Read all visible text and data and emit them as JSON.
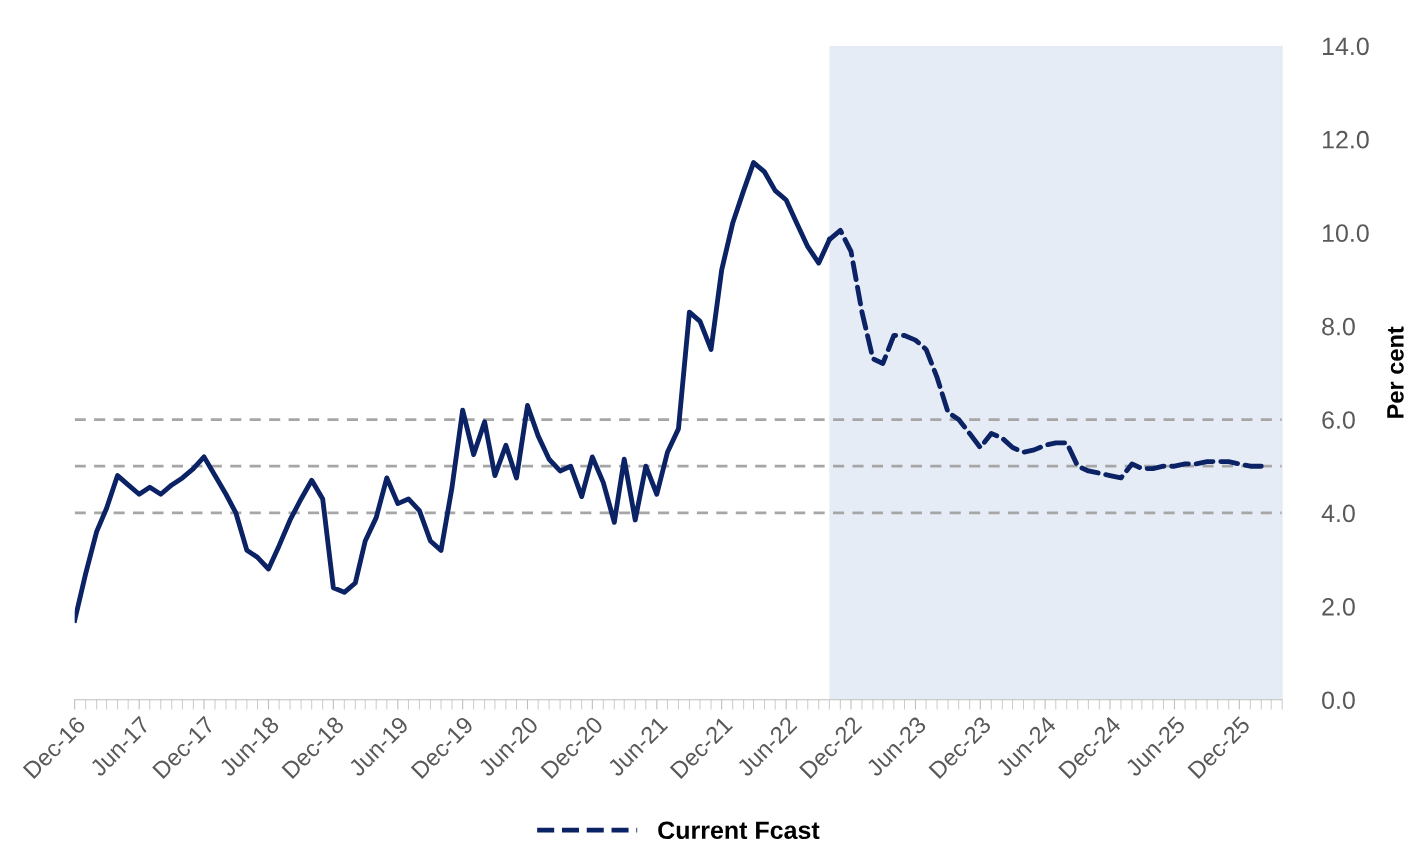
{
  "chart_data": {
    "type": "line",
    "ylabel": "Per cent",
    "x": [
      "2016-12",
      "2017-01",
      "2017-02",
      "2017-03",
      "2017-04",
      "2017-05",
      "2017-06",
      "2017-07",
      "2017-08",
      "2017-09",
      "2017-10",
      "2017-11",
      "2017-12",
      "2018-01",
      "2018-02",
      "2018-03",
      "2018-04",
      "2018-05",
      "2018-06",
      "2018-07",
      "2018-08",
      "2018-09",
      "2018-10",
      "2018-11",
      "2018-12",
      "2019-01",
      "2019-02",
      "2019-03",
      "2019-04",
      "2019-05",
      "2019-06",
      "2019-07",
      "2019-08",
      "2019-09",
      "2019-10",
      "2019-11",
      "2019-12",
      "2020-01",
      "2020-02",
      "2020-03",
      "2020-04",
      "2020-05",
      "2020-06",
      "2020-07",
      "2020-08",
      "2020-09",
      "2020-10",
      "2020-11",
      "2020-12",
      "2021-01",
      "2021-02",
      "2021-03",
      "2021-04",
      "2021-05",
      "2021-06",
      "2021-07",
      "2021-08",
      "2021-09",
      "2021-10",
      "2021-11",
      "2021-12",
      "2022-01",
      "2022-02",
      "2022-03",
      "2022-04",
      "2022-05",
      "2022-06",
      "2022-07",
      "2022-08",
      "2022-09",
      "2022-10",
      "2022-11",
      "2022-12",
      "2023-01",
      "2023-02",
      "2023-03",
      "2023-04",
      "2023-05",
      "2023-06",
      "2023-07",
      "2023-08",
      "2023-09",
      "2023-10",
      "2023-11",
      "2023-12",
      "2024-01",
      "2024-02",
      "2024-03",
      "2024-04",
      "2024-05",
      "2024-06",
      "2024-07",
      "2024-08",
      "2024-09",
      "2024-10",
      "2024-11",
      "2024-12",
      "2025-01",
      "2025-02",
      "2025-03",
      "2025-04",
      "2025-05",
      "2025-06",
      "2025-07",
      "2025-08",
      "2025-09",
      "2025-10",
      "2025-11",
      "2025-12",
      "2026-01",
      "2026-02"
    ],
    "series": [
      {
        "color": "#0b2265",
        "line_style": "solid",
        "values": [
          1.7,
          2.7,
          3.6,
          4.1,
          4.8,
          4.6,
          4.4,
          4.55,
          4.4,
          4.6,
          4.75,
          4.95,
          5.2,
          4.8,
          4.4,
          4.0,
          3.2,
          3.05,
          2.8,
          3.3,
          3.85,
          4.3,
          4.7,
          4.3,
          2.4,
          2.3,
          2.5,
          3.4,
          3.9,
          4.75,
          4.2,
          4.3,
          4.05,
          3.4,
          3.2,
          4.55,
          6.2,
          5.25,
          5.95,
          4.8,
          5.45,
          4.75,
          6.3,
          5.65,
          5.15,
          4.9,
          5.0,
          4.35,
          5.2,
          4.65,
          3.8,
          5.15,
          3.85,
          5.0,
          4.4,
          5.3,
          5.8,
          8.3,
          8.1,
          7.5,
          9.2,
          10.2,
          10.9,
          11.5,
          11.3,
          10.9,
          10.7,
          10.2,
          9.7,
          9.35,
          9.85,
          null,
          null,
          null,
          null,
          null,
          null,
          null,
          null,
          null,
          null,
          null,
          null,
          null,
          null,
          null,
          null,
          null,
          null,
          null,
          null,
          null,
          null,
          null,
          null,
          null,
          null,
          null,
          null,
          null,
          null,
          null,
          null,
          null,
          null,
          null,
          null,
          null,
          null,
          null,
          null
        ]
      },
      {
        "name": "Current Fcast",
        "color": "#0b2265",
        "line_style": "dashed",
        "values": [
          null,
          null,
          null,
          null,
          null,
          null,
          null,
          null,
          null,
          null,
          null,
          null,
          null,
          null,
          null,
          null,
          null,
          null,
          null,
          null,
          null,
          null,
          null,
          null,
          null,
          null,
          null,
          null,
          null,
          null,
          null,
          null,
          null,
          null,
          null,
          null,
          null,
          null,
          null,
          null,
          null,
          null,
          null,
          null,
          null,
          null,
          null,
          null,
          null,
          null,
          null,
          null,
          null,
          null,
          null,
          null,
          null,
          null,
          null,
          null,
          null,
          null,
          null,
          null,
          null,
          null,
          null,
          null,
          null,
          null,
          9.85,
          10.05,
          9.6,
          8.3,
          7.3,
          7.2,
          7.8,
          7.8,
          7.7,
          7.5,
          6.9,
          6.15,
          6.0,
          5.7,
          5.4,
          5.7,
          5.6,
          5.4,
          5.3,
          5.35,
          5.45,
          5.5,
          5.5,
          5.0,
          4.9,
          4.85,
          4.8,
          4.75,
          5.05,
          4.95,
          4.95,
          5.0,
          5.0,
          5.05,
          5.05,
          5.1,
          5.1,
          5.1,
          5.05,
          5.0,
          5.0
        ]
      }
    ],
    "xlim": [
      "2016-12",
      "2026-04"
    ],
    "xticks": [
      {
        "value": "2016-12",
        "label": "Dec-16"
      },
      {
        "value": "2017-06",
        "label": "Jun-17"
      },
      {
        "value": "2017-12",
        "label": "Dec-17"
      },
      {
        "value": "2018-06",
        "label": "Jun-18"
      },
      {
        "value": "2018-12",
        "label": "Dec-18"
      },
      {
        "value": "2019-06",
        "label": "Jun-19"
      },
      {
        "value": "2019-12",
        "label": "Dec-19"
      },
      {
        "value": "2020-06",
        "label": "Jun-20"
      },
      {
        "value": "2020-12",
        "label": "Dec-20"
      },
      {
        "value": "2021-06",
        "label": "Jun-21"
      },
      {
        "value": "2021-12",
        "label": "Dec-21"
      },
      {
        "value": "2022-06",
        "label": "Jun-22"
      },
      {
        "value": "2022-12",
        "label": "Dec-22"
      },
      {
        "value": "2023-06",
        "label": "Jun-23"
      },
      {
        "value": "2023-12",
        "label": "Dec-23"
      },
      {
        "value": "2024-06",
        "label": "Jun-24"
      },
      {
        "value": "2024-12",
        "label": "Dec-24"
      },
      {
        "value": "2025-06",
        "label": "Jun-25"
      },
      {
        "value": "2025-12",
        "label": "Dec-25"
      }
    ],
    "ylim": [
      0,
      14
    ],
    "yticks": [
      {
        "value": 0,
        "label": "0.0"
      },
      {
        "value": 2,
        "label": "2.0"
      },
      {
        "value": 4,
        "label": "4.0"
      },
      {
        "value": 6,
        "label": "6.0"
      },
      {
        "value": 8,
        "label": "8.0"
      },
      {
        "value": 10,
        "label": "10.0"
      },
      {
        "value": 12,
        "label": "12.0"
      },
      {
        "value": 14,
        "label": "14.0"
      }
    ],
    "ref_lines": [
      {
        "axis": "y",
        "value": 6,
        "color": "#a6a6a6",
        "line_style": "dashed"
      },
      {
        "axis": "y",
        "value": 5,
        "color": "#a6a6a6",
        "line_style": "dashed"
      },
      {
        "axis": "y",
        "value": 4,
        "color": "#a6a6a6",
        "line_style": "dashed"
      }
    ],
    "bands": [
      {
        "axis": "x",
        "from": "2022-10",
        "to": "2026-04",
        "color": "#e6ecf5"
      }
    ],
    "grid": false,
    "legend": "bottom",
    "marker": "none"
  }
}
